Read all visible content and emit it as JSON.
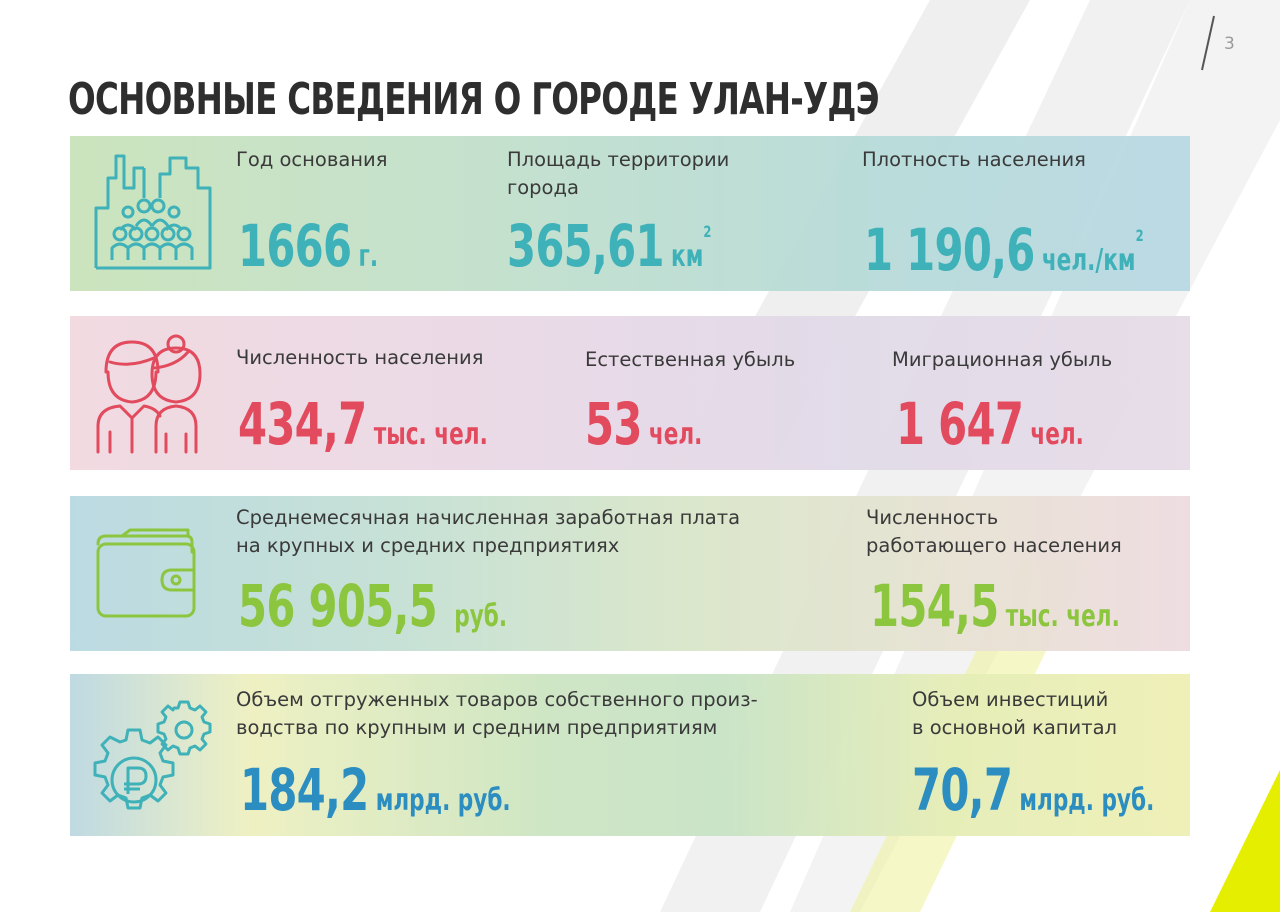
{
  "page": {
    "number": "3",
    "title": "ОСНОВНЫЕ СВЕДЕНИЯ О ГОРОДЕ УЛАН-УДЭ"
  },
  "colors": {
    "teal": "#3fb1b8",
    "red": "#e24a5e",
    "green": "#8cc63f",
    "blue": "#2c8ec0",
    "title": "#2e2e2e",
    "accent_yellow": "#e6ee00"
  },
  "panels": [
    {
      "icon": "city-people-icon",
      "stats": [
        {
          "label": "Год основания",
          "value": "1666",
          "unit": "г."
        },
        {
          "label_line1": "Площадь территории",
          "label_line2": "города",
          "value": "365,61",
          "unit": "км",
          "unit_sup": "2"
        },
        {
          "label": "Плотность населения",
          "value": "1 190,6",
          "unit": "чел./км",
          "unit_sup": "2"
        }
      ]
    },
    {
      "icon": "man-woman-icon",
      "stats": [
        {
          "label": "Численность населения",
          "value": "434,7",
          "unit": "тыс. чел."
        },
        {
          "label": "Естественная убыль",
          "value": "53",
          "unit": "чел."
        },
        {
          "label": "Миграционная убыль",
          "value": "1 647",
          "unit": "чел."
        }
      ]
    },
    {
      "icon": "wallet-icon",
      "stats": [
        {
          "label_line1": "Среднемесячная начисленная заработная плата",
          "label_line2": "на крупных и средних предприятиях",
          "value": "56 905,5",
          "unit": "руб."
        },
        {
          "label_line1": "Численность",
          "label_line2": "работающего населения",
          "value": "154,5",
          "unit": "тыс. чел."
        }
      ]
    },
    {
      "icon": "gears-ruble-icon",
      "stats": [
        {
          "label_line1": "Объем отгруженных товаров собственного произ-",
          "label_line2": "водства по крупным и средним предприятиям",
          "value": "184,2",
          "unit": "млрд. руб."
        },
        {
          "label_line1": "Объем инвестиций",
          "label_line2": "в основной капитал",
          "value": "70,7",
          "unit": "млрд. руб."
        }
      ]
    }
  ]
}
